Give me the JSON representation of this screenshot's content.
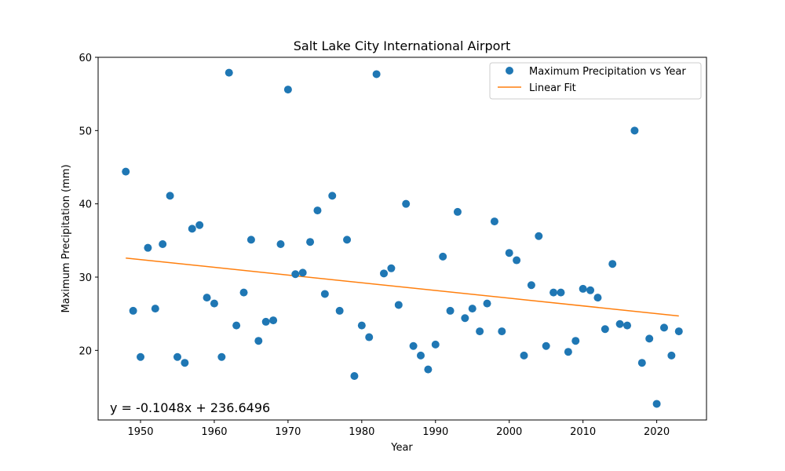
{
  "chart_data": {
    "type": "scatter",
    "title": "Salt Lake City International Airport",
    "xlabel": "Year",
    "ylabel": "Maximum Precipitation (mm)",
    "xlim": [
      1944.25,
      2026.75
    ],
    "ylim": [
      10.5,
      60
    ],
    "xticks": [
      1950,
      1960,
      1970,
      1980,
      1990,
      2000,
      2010,
      2020
    ],
    "yticks": [
      20,
      30,
      40,
      50,
      60
    ],
    "grid": false,
    "legend_position": "top-right",
    "colors": {
      "scatter": "#1f77b4",
      "fit": "#ff7f0e"
    },
    "series": [
      {
        "name": "Maximum Precipitation vs Year",
        "kind": "scatter",
        "x": [
          1948,
          1949,
          1950,
          1951,
          1952,
          1953,
          1954,
          1955,
          1956,
          1957,
          1958,
          1959,
          1960,
          1961,
          1962,
          1963,
          1964,
          1965,
          1966,
          1967,
          1968,
          1969,
          1970,
          1971,
          1972,
          1973,
          1974,
          1975,
          1976,
          1977,
          1978,
          1979,
          1980,
          1981,
          1982,
          1983,
          1984,
          1985,
          1986,
          1987,
          1988,
          1989,
          1990,
          1991,
          1992,
          1993,
          1994,
          1995,
          1996,
          1997,
          1998,
          1999,
          2000,
          2001,
          2002,
          2003,
          2004,
          2005,
          2006,
          2007,
          2008,
          2009,
          2010,
          2011,
          2012,
          2013,
          2014,
          2015,
          2016,
          2017,
          2018,
          2019,
          2020,
          2021,
          2022,
          2023
        ],
        "y": [
          44.4,
          25.4,
          19.1,
          34.0,
          25.7,
          34.5,
          41.1,
          19.1,
          18.3,
          36.6,
          37.1,
          27.2,
          26.4,
          19.1,
          57.9,
          23.4,
          27.9,
          35.1,
          21.3,
          23.9,
          24.1,
          34.5,
          55.6,
          30.4,
          30.6,
          34.8,
          39.1,
          27.7,
          41.1,
          25.4,
          35.1,
          16.5,
          23.4,
          21.8,
          57.7,
          30.5,
          31.2,
          26.2,
          40.0,
          20.6,
          19.3,
          17.4,
          20.8,
          32.8,
          25.4,
          38.9,
          24.4,
          25.7,
          22.6,
          26.4,
          37.6,
          22.6,
          33.3,
          32.3,
          19.3,
          28.9,
          35.6,
          20.6,
          27.9,
          27.9,
          19.8,
          21.3,
          28.4,
          28.2,
          27.2,
          22.9,
          31.8,
          23.6,
          23.4,
          50.0,
          18.3,
          21.6,
          12.7,
          23.1,
          19.3,
          22.6
        ]
      },
      {
        "name": "Linear Fit",
        "kind": "line",
        "x": [
          1948,
          2023
        ],
        "y": [
          32.6,
          24.7
        ]
      }
    ],
    "annotation": "y = -0.1048x + 236.6496"
  }
}
